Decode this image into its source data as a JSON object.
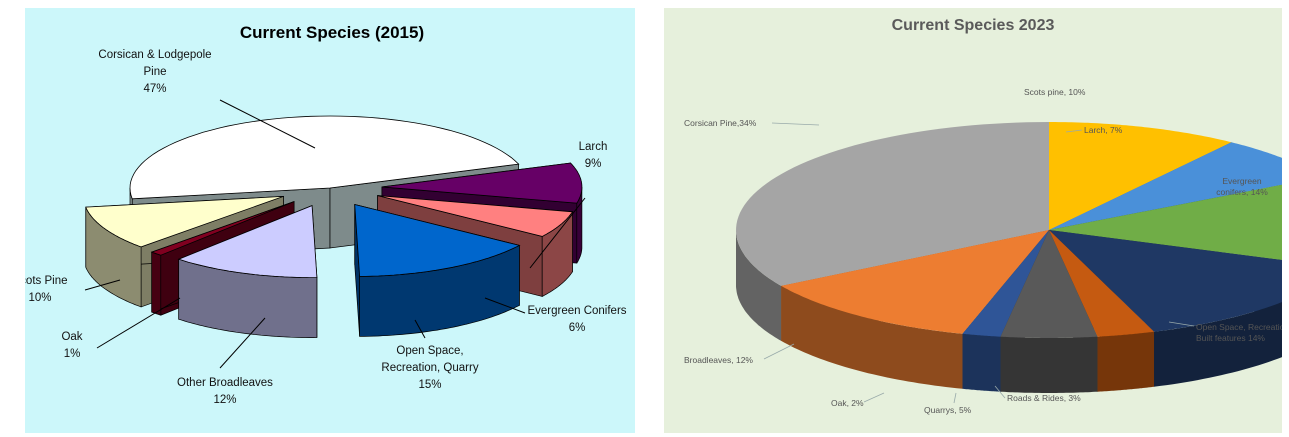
{
  "chart_data": [
    {
      "type": "pie",
      "title": "Current Species (2015)",
      "background": "#ccf7fa",
      "slices": [
        {
          "label": "Corsican & Lodgepole Pine",
          "value": 47,
          "text": "47%",
          "color": "#ffffff"
        },
        {
          "label": "Larch",
          "value": 9,
          "text": "9%",
          "color": "#660066"
        },
        {
          "label": "Evergreen Conifers",
          "value": 6,
          "text": "6%",
          "color": "#ff8080"
        },
        {
          "label": "Open Space, Recreation, Quarry",
          "value": 15,
          "text": "15%",
          "color": "#0066cc"
        },
        {
          "label": "Other Broadleaves",
          "value": 12,
          "text": "12%",
          "color": "#ccccff"
        },
        {
          "label": "Oak",
          "value": 1,
          "text": "1%",
          "color": "#800020"
        },
        {
          "label": "Scots Pine",
          "value": 10,
          "text": "10%",
          "color": "#ffffcc"
        }
      ],
      "label_lines": [
        [
          "Corsican & Lodgepole",
          "Pine",
          "47%"
        ],
        [
          "Larch",
          "9%"
        ],
        [
          "Evergreen Conifers",
          "6%"
        ],
        [
          "Open Space,",
          "Recreation, Quarry",
          "15%"
        ],
        [
          "Other Broadleaves",
          "12%"
        ],
        [
          "Oak",
          "1%"
        ],
        [
          "Scots Pine",
          "10%"
        ]
      ]
    },
    {
      "type": "pie",
      "title": "Current Species 2023",
      "background": "#e6f0dc",
      "slices": [
        {
          "label": "Scots pine",
          "value": 10,
          "text": "Scots pine, 10%",
          "color": "#ffc000"
        },
        {
          "label": "Larch",
          "value": 7,
          "text": "Larch, 7%",
          "color": "#4a90d9"
        },
        {
          "label": "Evergreen conifers",
          "value": 14,
          "text": "Evergreen conifers, 14%",
          "color": "#70ad47"
        },
        {
          "label": "Open Space, Recreation, Built features",
          "value": 14,
          "text": "Open Space, Recreation, Built features 14%",
          "color": "#1f3864"
        },
        {
          "label": "Roads & Rides",
          "value": 3,
          "text": "Roads & Rides, 3%",
          "color": "#c55a11"
        },
        {
          "label": "Quarrys",
          "value": 5,
          "text": "Quarrys, 5%",
          "color": "#595959"
        },
        {
          "label": "Oak",
          "value": 2,
          "text": "Oak, 2%",
          "color": "#2f5597"
        },
        {
          "label": "Broadleaves",
          "value": 12,
          "text": "Broadleaves, 12%",
          "color": "#ed7d31"
        },
        {
          "label": "Corsican Pine",
          "value": 34,
          "text": "Corsican Pine,34%",
          "color": "#a5a5a5"
        }
      ],
      "label_lines": [
        [
          "Scots pine, 10%"
        ],
        [
          "Larch,  7%"
        ],
        [
          "Evergreen",
          "conifers, 14%"
        ],
        [
          "Open Space, Recreation,",
          "Built features 14%"
        ],
        [
          "Roads & Rides, 3%"
        ],
        [
          "Quarrys, 5%"
        ],
        [
          "Oak, 2%"
        ],
        [
          "Broadleaves, 12%"
        ],
        [
          "Corsican Pine,34%"
        ]
      ]
    }
  ]
}
